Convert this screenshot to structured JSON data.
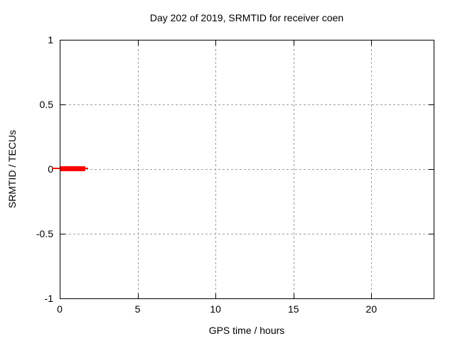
{
  "chart_data": {
    "type": "line",
    "title": "Day 202 of 2019, SRMTID for receiver coen",
    "xlabel": "GPS time / hours",
    "ylabel": "SRMTID / TECUs",
    "xlim": [
      0,
      24
    ],
    "ylim": [
      -1,
      1
    ],
    "xticks": [
      {
        "value": 0,
        "label": "0"
      },
      {
        "value": 5,
        "label": "5"
      },
      {
        "value": 10,
        "label": "10"
      },
      {
        "value": 15,
        "label": "15"
      },
      {
        "value": 20,
        "label": "20"
      }
    ],
    "yticks": [
      {
        "value": -1,
        "label": "-1"
      },
      {
        "value": -0.5,
        "label": "-0.5"
      },
      {
        "value": 0,
        "label": "0"
      },
      {
        "value": 0.5,
        "label": "0.5"
      },
      {
        "value": 1,
        "label": "1"
      }
    ],
    "grid": {
      "show": true,
      "x_values": [
        5,
        10,
        15,
        20
      ],
      "y_values": [
        -0.5,
        0,
        0.5
      ],
      "color": "#9e9e9e",
      "style": "dashed"
    },
    "legend": "none",
    "border_color": "#000000",
    "background": "#ffffff",
    "series": [
      {
        "name": "SRMTID",
        "color": "#ff0000",
        "segments": [
          {
            "x1": -0.5,
            "x2": 1.83,
            "y": 0,
            "thickness_px": 2,
            "kind": "thin"
          },
          {
            "x1": 0.05,
            "x2": 1.65,
            "y": 0,
            "thickness_px": 7,
            "kind": "thick"
          }
        ]
      }
    ]
  }
}
